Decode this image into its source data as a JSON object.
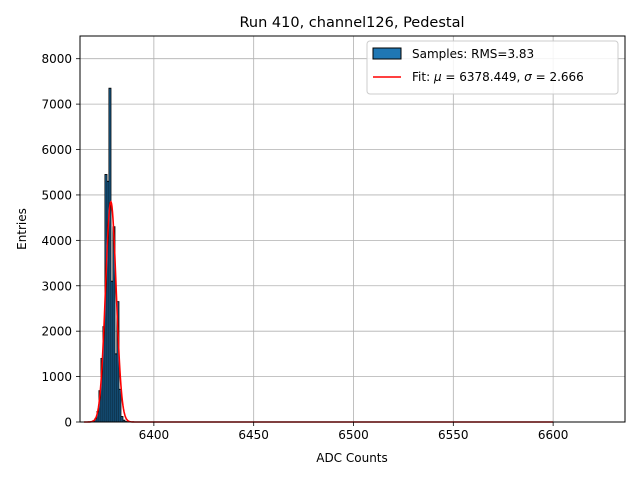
{
  "chart_data": {
    "type": "bar",
    "title": "Run 410, channel126, Pedestal",
    "xlabel": "ADC Counts",
    "ylabel": "Entries",
    "xlim": [
      6363,
      6636
    ],
    "ylim": [
      0,
      8500
    ],
    "xticks": [
      6400,
      6450,
      6500,
      6550,
      6600
    ],
    "yticks": [
      0,
      1000,
      2000,
      3000,
      4000,
      5000,
      6000,
      7000,
      8000
    ],
    "grid": true,
    "legend_position": "upper right",
    "colors": {
      "bars": "#1f77b4",
      "bar_edge": "#000000",
      "fit": "#ff0000",
      "grid": "#b0b0b0"
    },
    "series": [
      {
        "name": "Samples: RMS=3.83",
        "kind": "histogram",
        "bins": [
          [
            6370,
            30
          ],
          [
            6371,
            80
          ],
          [
            6372,
            230
          ],
          [
            6373,
            690
          ],
          [
            6374,
            1400
          ],
          [
            6375,
            2100
          ],
          [
            6376,
            5450
          ],
          [
            6377,
            5300
          ],
          [
            6378,
            7350
          ],
          [
            6379,
            3100
          ],
          [
            6380,
            4300
          ],
          [
            6381,
            1500
          ],
          [
            6382,
            2650
          ],
          [
            6383,
            720
          ],
          [
            6384,
            120
          ],
          [
            6385,
            40
          ],
          [
            6386,
            10
          ]
        ]
      },
      {
        "name": "Fit: μ = 6378.449, σ = 2.666",
        "legend_parts": [
          "Fit: ",
          "μ",
          " = 6378.449, ",
          "σ",
          " = 2.666"
        ],
        "kind": "gaussian",
        "mu": 6378.449,
        "sigma": 2.666,
        "amplitude": 4850,
        "x_range": [
          6365,
          6600
        ]
      }
    ]
  }
}
